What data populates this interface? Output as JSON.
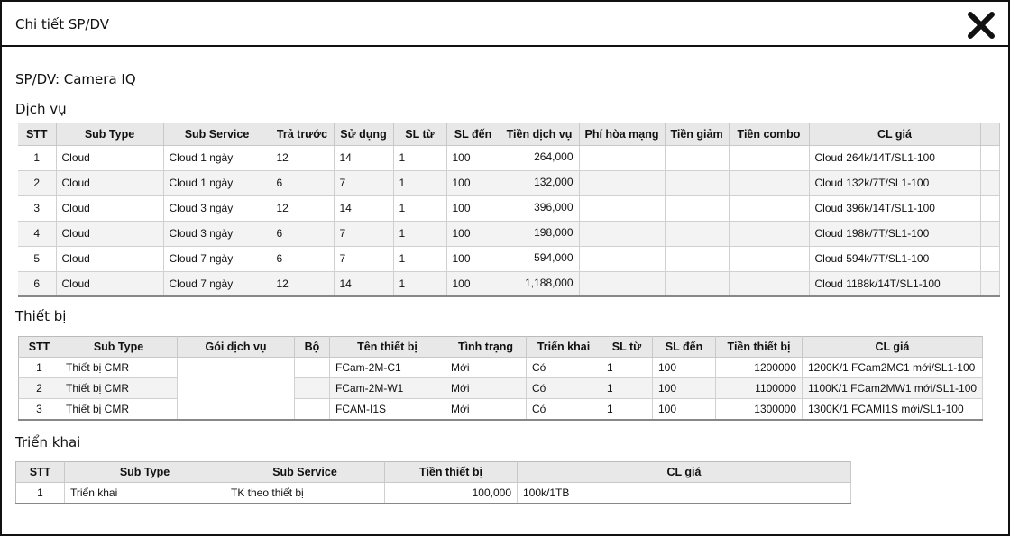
{
  "dialog": {
    "title": "Chi tiết SP/DV",
    "close_icon": "close-icon",
    "product": "SP/DV: Camera IQ"
  },
  "service": {
    "title": "Dịch vụ",
    "headers": [
      "STT",
      "Sub Type",
      "Sub Service",
      "Trả trước",
      "Sử dụng",
      "SL từ",
      "SL đến",
      "Tiền dịch vụ",
      "Phí hòa mạng",
      "Tiền giảm",
      "Tiền combo",
      "CL giá"
    ],
    "rows": [
      [
        "1",
        "Cloud",
        "Cloud 1 ngày",
        "12",
        "14",
        "1",
        "100",
        "264,000",
        "",
        "",
        "",
        "Cloud 264k/14T/SL1-100"
      ],
      [
        "2",
        "Cloud",
        "Cloud 1 ngày",
        "6",
        "7",
        "1",
        "100",
        "132,000",
        "",
        "",
        "",
        "Cloud 132k/7T/SL1-100"
      ],
      [
        "3",
        "Cloud",
        "Cloud 3 ngày",
        "12",
        "14",
        "1",
        "100",
        "396,000",
        "",
        "",
        "",
        "Cloud 396k/14T/SL1-100"
      ],
      [
        "4",
        "Cloud",
        "Cloud 3 ngày",
        "6",
        "7",
        "1",
        "100",
        "198,000",
        "",
        "",
        "",
        "Cloud 198k/7T/SL1-100"
      ],
      [
        "5",
        "Cloud",
        "Cloud 7 ngày",
        "6",
        "7",
        "1",
        "100",
        "594,000",
        "",
        "",
        "",
        "Cloud 594k/7T/SL1-100"
      ],
      [
        "6",
        "Cloud",
        "Cloud 7 ngày",
        "12",
        "14",
        "1",
        "100",
        "1,188,000",
        "",
        "",
        "",
        "Cloud 1188k/14T/SL1-100"
      ]
    ]
  },
  "device": {
    "title": "Thiết bị",
    "headers": [
      "STT",
      "Sub Type",
      "Gói dịch vụ",
      "Bộ",
      "Tên thiết bị",
      "Tình trạng",
      "Triển khai",
      "SL từ",
      "SL đến",
      "Tiền thiết bị",
      "CL giá"
    ],
    "rows": [
      [
        "1",
        "Thiết bị CMR",
        "",
        "",
        "FCam-2M-C1",
        "Mới",
        "Có",
        "1",
        "100",
        "1200000",
        "1200K/1 FCam2MC1 mới/SL1-100"
      ],
      [
        "2",
        "Thiết bị CMR",
        "",
        "",
        "FCam-2M-W1",
        "Mới",
        "Có",
        "1",
        "100",
        "1100000",
        "1100K/1 FCam2MW1 mới/SL1-100"
      ],
      [
        "3",
        "Thiết bị CMR",
        "",
        "",
        "FCAM-I1S",
        "Mới",
        "Có",
        "1",
        "100",
        "1300000",
        "1300K/1 FCAMI1S mới/SL1-100"
      ]
    ]
  },
  "deploy": {
    "title": "Triển khai",
    "headers": [
      "STT",
      "Sub Type",
      "Sub Service",
      "Tiền thiết bị",
      "CL giá"
    ],
    "rows": [
      [
        "1",
        "Triển khai",
        "TK theo thiết bị",
        "100,000",
        "100k/1TB"
      ]
    ]
  }
}
